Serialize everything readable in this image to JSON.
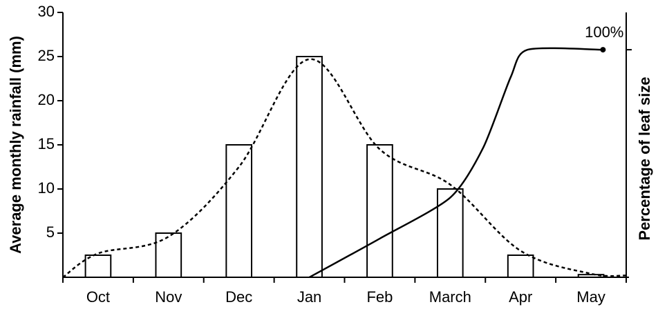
{
  "chart_data": {
    "type": "bar",
    "categories": [
      "Oct",
      "Nov",
      "Dec",
      "Jan",
      "Feb",
      "March",
      "Apr",
      "May"
    ],
    "values": [
      2.5,
      5,
      15,
      25,
      15,
      10,
      2.5,
      0.3
    ],
    "color": "#ffffff",
    "ylabel": "Average monthly rainfall (mm)",
    "y2label": "Percentage of leaf size",
    "ylim": [
      0,
      30
    ],
    "yticks": [
      5,
      10,
      15,
      20,
      25,
      30
    ],
    "y2lim": [
      0,
      116.4
    ],
    "y2ticks": [
      100
    ],
    "annotation": "100%",
    "lines": [
      {
        "x": [
          -0.5,
          0,
          1,
          2,
          3,
          4,
          5,
          6,
          7,
          7.5
        ],
        "values": [
          0,
          2.7,
          4.6,
          12.5,
          24.7,
          14.5,
          10.5,
          3,
          0.4,
          0.2
        ],
        "dashed": true,
        "axis": "y"
      },
      {
        "x": [
          3,
          4,
          5,
          5.47,
          5.86,
          6.1,
          7.17
        ],
        "values": [
          0,
          17,
          35,
          57,
          88,
          100,
          100
        ],
        "dashed": false,
        "axis": "y2"
      }
    ]
  }
}
